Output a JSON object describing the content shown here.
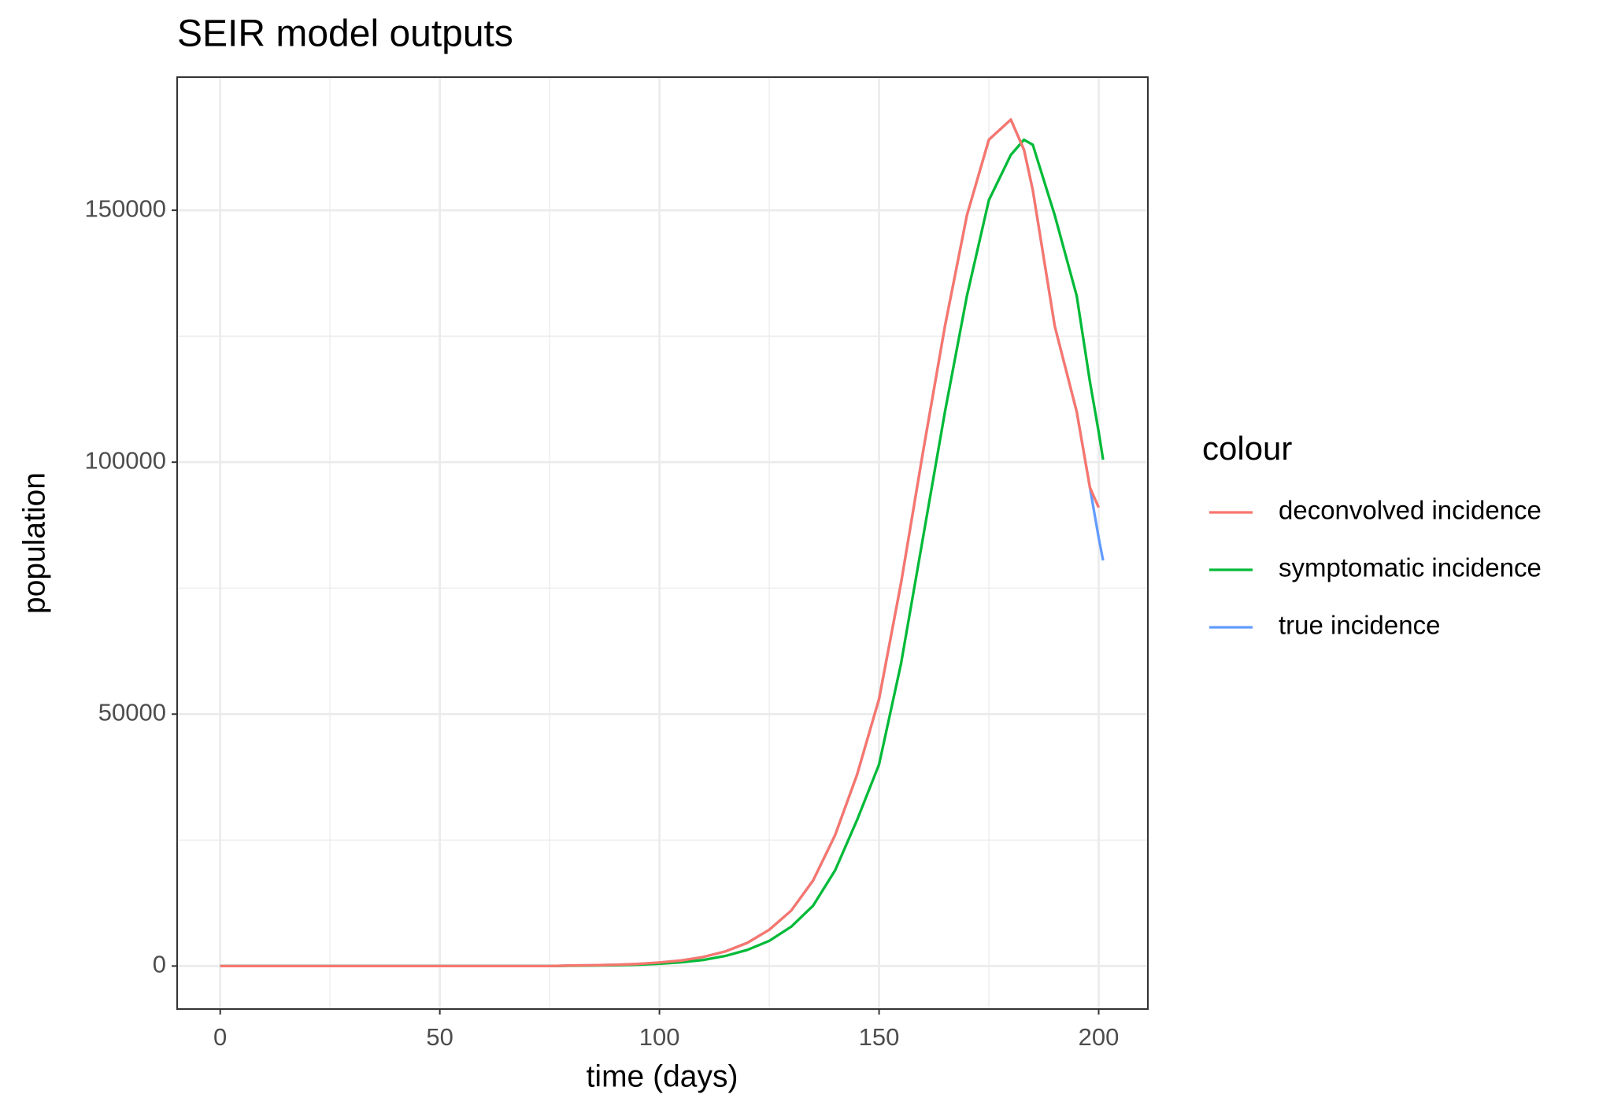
{
  "chart_data": {
    "type": "line",
    "title": "SEIR model outputs",
    "x_label": "time (days)",
    "y_label": "population",
    "legend_title": "colour",
    "x": [
      0,
      5,
      10,
      15,
      20,
      25,
      30,
      35,
      40,
      45,
      50,
      55,
      60,
      65,
      70,
      75,
      80,
      85,
      90,
      95,
      100,
      105,
      110,
      115,
      120,
      125,
      130,
      135,
      140,
      145,
      150,
      155,
      160,
      165,
      170,
      175,
      180,
      183,
      185,
      190,
      195,
      198,
      200,
      201
    ],
    "series": [
      {
        "name": "deconvolved incidence",
        "color": "#F8766D",
        "values": [
          0,
          0,
          0,
          0,
          0,
          0,
          0,
          0,
          0,
          0,
          0,
          0,
          0,
          0,
          0,
          0,
          100,
          150,
          250,
          400,
          700,
          1100,
          1800,
          2900,
          4600,
          7200,
          11000,
          17000,
          26000,
          38000,
          53000,
          76000,
          102000,
          127000,
          149000,
          164000,
          168000,
          162000,
          154000,
          127000,
          110000,
          95000,
          91000,
          null
        ]
      },
      {
        "name": "symptomatic incidence",
        "color": "#00BA38",
        "values": [
          0,
          0,
          0,
          0,
          0,
          0,
          0,
          0,
          0,
          0,
          0,
          0,
          0,
          0,
          0,
          0,
          50,
          100,
          150,
          250,
          450,
          750,
          1200,
          2000,
          3200,
          5000,
          7800,
          12000,
          19000,
          29000,
          40000,
          60000,
          85000,
          110000,
          133000,
          152000,
          161000,
          164000,
          163000,
          149000,
          133000,
          116000,
          106000,
          100500
        ]
      },
      {
        "name": "true incidence",
        "color": "#619CFF",
        "values": [
          0,
          0,
          0,
          0,
          0,
          0,
          0,
          0,
          0,
          0,
          0,
          0,
          0,
          0,
          0,
          0,
          100,
          150,
          250,
          400,
          700,
          1100,
          1800,
          2900,
          4600,
          7200,
          11000,
          17000,
          26000,
          38000,
          53000,
          76000,
          102000,
          127000,
          149000,
          164000,
          168000,
          162000,
          154000,
          127000,
          110000,
          95000,
          85000,
          80500
        ]
      }
    ],
    "xlim": [
      -9.8,
      211.2
    ],
    "ylim": [
      -8537,
      176423
    ],
    "xticks": [
      0,
      50,
      100,
      150,
      200
    ],
    "yticks": [
      0,
      50000,
      100000,
      150000
    ],
    "grid": true,
    "legend": "right"
  }
}
